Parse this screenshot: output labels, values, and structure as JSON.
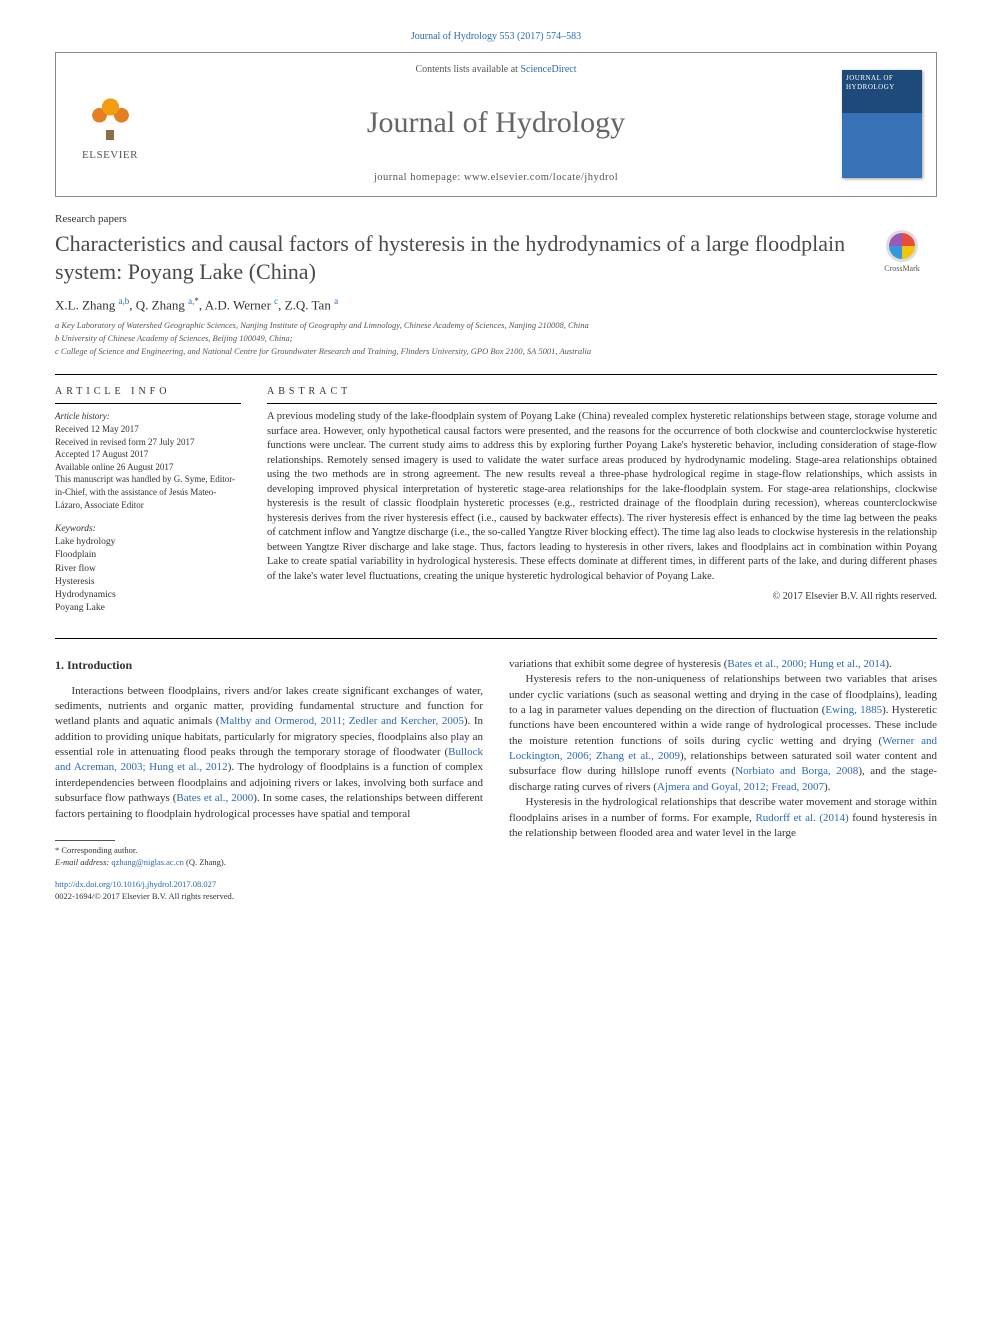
{
  "citation_line": "Journal of Hydrology 553 (2017) 574–583",
  "header": {
    "contents_avail_pre": "Contents lists available at ",
    "contents_avail_link": "ScienceDirect",
    "journal_name": "Journal of Hydrology",
    "homepage_pre": "journal homepage: ",
    "homepage_url": "www.elsevier.com/locate/jhydrol",
    "publisher_name": "ELSEVIER",
    "cover_text": "JOURNAL OF HYDROLOGY"
  },
  "paper_type": "Research papers",
  "title": "Characteristics and causal factors of hysteresis in the hydrodynamics of a large floodplain system: Poyang Lake (China)",
  "crossmark_label": "CrossMark",
  "authors_html": "X.L. Zhang <sup class=\"sup-link\">a,b</sup>, Q. Zhang <sup class=\"sup-link\">a,</sup><sup>*</sup>, A.D. Werner <sup class=\"sup-link\">c</sup>, Z.Q. Tan <sup class=\"sup-link\">a</sup>",
  "affiliations": {
    "a": "a Key Laboratory of Watershed Geographic Sciences, Nanjing Institute of Geography and Limnology, Chinese Academy of Sciences, Nanjing 210008, China",
    "b": "b University of Chinese Academy of Sciences, Beijing 100049, China;",
    "c": "c College of Science and Engineering, and National Centre for Groundwater Research and Training, Flinders University, GPO Box 2100, SA 5001, Australia"
  },
  "info": {
    "heading": "article info",
    "history_label": "Article history:",
    "received": "Received 12 May 2017",
    "revised": "Received in revised form 27 July 2017",
    "accepted": "Accepted 17 August 2017",
    "online": "Available online 26 August 2017",
    "editor_note": "This manuscript was handled by G. Syme, Editor-in-Chief, with the assistance of Jesús Mateo-Lázaro, Associate Editor",
    "keywords_label": "Keywords:",
    "keywords": [
      "Lake hydrology",
      "Floodplain",
      "River flow",
      "Hysteresis",
      "Hydrodynamics",
      "Poyang Lake"
    ]
  },
  "abstract": {
    "heading": "abstract",
    "text": "A previous modeling study of the lake-floodplain system of Poyang Lake (China) revealed complex hysteretic relationships between stage, storage volume and surface area. However, only hypothetical causal factors were presented, and the reasons for the occurrence of both clockwise and counterclockwise hysteretic functions were unclear. The current study aims to address this by exploring further Poyang Lake's hysteretic behavior, including consideration of stage-flow relationships. Remotely sensed imagery is used to validate the water surface areas produced by hydrodynamic modeling. Stage-area relationships obtained using the two methods are in strong agreement. The new results reveal a three-phase hydrological regime in stage-flow relationships, which assists in developing improved physical interpretation of hysteretic stage-area relationships for the lake-floodplain system. For stage-area relationships, clockwise hysteresis is the result of classic floodplain hysteretic processes (e.g., restricted drainage of the floodplain during recession), whereas counterclockwise hysteresis derives from the river hysteresis effect (i.e., caused by backwater effects). The river hysteresis effect is enhanced by the time lag between the peaks of catchment inflow and Yangtze discharge (i.e., the so-called Yangtze River blocking effect). The time lag also leads to clockwise hysteresis in the relationship between Yangtze River discharge and lake stage. Thus, factors leading to hysteresis in other rivers, lakes and floodplains act in combination within Poyang Lake to create spatial variability in hydrological hysteresis. These effects dominate at different times, in different parts of the lake, and during different phases of the lake's water level fluctuations, creating the unique hysteretic hydrological behavior of Poyang Lake.",
    "copyright": "© 2017 Elsevier B.V. All rights reserved."
  },
  "body": {
    "section_title": "1. Introduction",
    "col1_p1": "Interactions between floodplains, rivers and/or lakes create significant exchanges of water, sediments, nutrients and organic matter, providing fundamental structure and function for wetland plants and aquatic animals (<span class=\"cite\">Maltby and Ormerod, 2011; Zedler and Kercher, 2005</span>). In addition to providing unique habitats, particularly for migratory species, floodplains also play an essential role in attenuating flood peaks through the temporary storage of floodwater (<span class=\"cite\">Bullock and Acreman, 2003; Hung et al., 2012</span>). The hydrology of floodplains is a function of complex interdependencies between floodplains and adjoining rivers or lakes, involving both surface and subsurface flow pathways (<span class=\"cite\">Bates et al., 2000</span>). In some cases, the relationships between different factors pertaining to floodplain hydrological processes have spatial and temporal",
    "col2_p1": "variations that exhibit some degree of hysteresis (<span class=\"cite\">Bates et al., 2000; Hung et al., 2014</span>).",
    "col2_p2": "Hysteresis refers to the non-uniqueness of relationships between two variables that arises under cyclic variations (such as seasonal wetting and drying in the case of floodplains), leading to a lag in parameter values depending on the direction of fluctuation (<span class=\"cite\">Ewing, 1885</span>). Hysteretic functions have been encountered within a wide range of hydrological processes. These include the moisture retention functions of soils during cyclic wetting and drying (<span class=\"cite\">Werner and Lockington, 2006; Zhang et al., 2009</span>), relationships between saturated soil water content and subsurface flow during hillslope runoff events (<span class=\"cite\">Norbiato and Borga, 2008</span>), and the stage-discharge rating curves of rivers (<span class=\"cite\">Ajmera and Goyal, 2012; Fread, 2007</span>).",
    "col2_p3": "Hysteresis in the hydrological relationships that describe water movement and storage within floodplains arises in a number of forms. For example, <span class=\"cite\">Rudorff et al. (2014)</span> found hysteresis in the relationship between flooded area and water level in the large"
  },
  "footnote": {
    "corresponding_label": "* Corresponding author.",
    "email_label": "E-mail address:",
    "email": "qzhang@niglas.ac.cn",
    "email_author": "(Q. Zhang)."
  },
  "doi": {
    "url": "http://dx.doi.org/10.1016/j.jhydrol.2017.08.027",
    "issn_line": "0022-1694/© 2017 Elsevier B.V. All rights reserved."
  },
  "colors": {
    "link": "#2a6ab5",
    "text": "#333333",
    "heading_gray": "#4a4a4a",
    "muted": "#555555"
  }
}
